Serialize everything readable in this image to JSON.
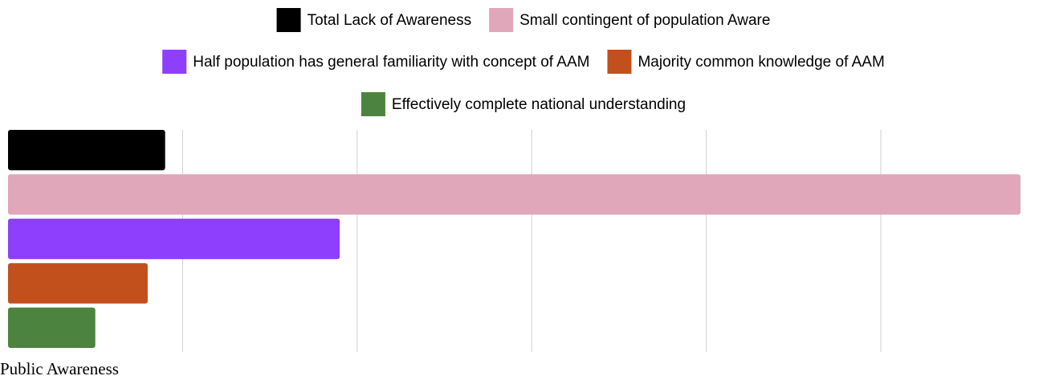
{
  "chart_data": {
    "type": "bar",
    "orientation": "horizontal",
    "categories": [
      "Public Awareness"
    ],
    "series": [
      {
        "name": "Total Lack of Awareness",
        "color": "#000000",
        "values": [
          9
        ]
      },
      {
        "name": "Small contingent of population Aware",
        "color": "#e0a6b9",
        "values": [
          58
        ]
      },
      {
        "name": "Half population has general familiarity with concept of AAM",
        "color": "#8e3ffd",
        "values": [
          19
        ]
      },
      {
        "name": "Majority common knowledge of AAM",
        "color": "#c1501c",
        "values": [
          8
        ]
      },
      {
        "name": "Effectively complete national understanding",
        "color": "#4c843f",
        "values": [
          5
        ]
      }
    ],
    "xlim": [
      0,
      58
    ],
    "xticks": [
      0,
      10,
      20,
      30,
      40,
      50
    ],
    "grid": true,
    "legend": "top"
  }
}
